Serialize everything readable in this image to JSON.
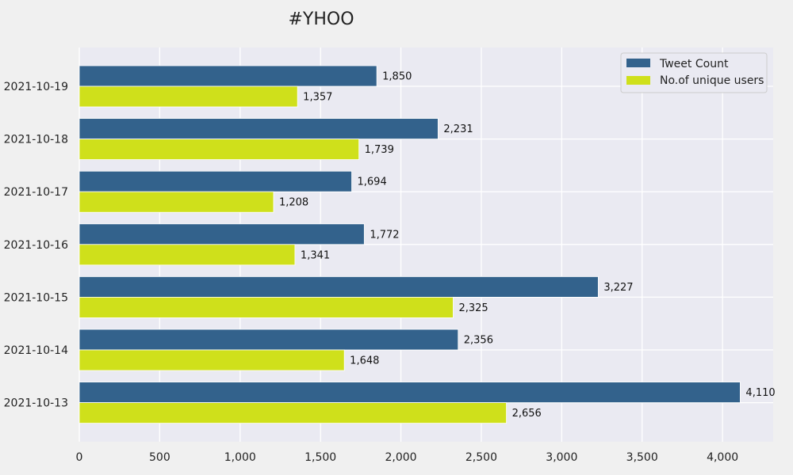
{
  "chart_data": {
    "type": "bar",
    "orientation": "horizontal",
    "title": "#YHOO",
    "categories": [
      "2021-10-19",
      "2021-10-18",
      "2021-10-17",
      "2021-10-16",
      "2021-10-15",
      "2021-10-14",
      "2021-10-13"
    ],
    "series": [
      {
        "name": "Tweet Count",
        "color": "#33628c",
        "values": [
          1850,
          2231,
          1694,
          1772,
          3227,
          2356,
          4110
        ]
      },
      {
        "name": "No.of unique users",
        "color": "#cfe01b",
        "values": [
          1357,
          1739,
          1208,
          1341,
          2325,
          1648,
          2656
        ]
      }
    ],
    "value_labels": [
      [
        "1,850",
        "2,231",
        "1,694",
        "1,772",
        "3,227",
        "2,356",
        "4,110"
      ],
      [
        "1,357",
        "1,739",
        "1,208",
        "1,341",
        "2,325",
        "1,648",
        "2,656"
      ]
    ],
    "xticks": [
      0,
      500,
      1000,
      1500,
      2000,
      2500,
      3000,
      3500,
      4000
    ],
    "xtick_labels": [
      "0",
      "500",
      "1,000",
      "1,500",
      "2,000",
      "2,500",
      "3,000",
      "3,500",
      "4,000"
    ],
    "xlim": [
      0,
      4315
    ],
    "grid": true,
    "legend_position": "top-right",
    "plot_background": "#eaeaf2",
    "grid_color": "#ffffff"
  }
}
